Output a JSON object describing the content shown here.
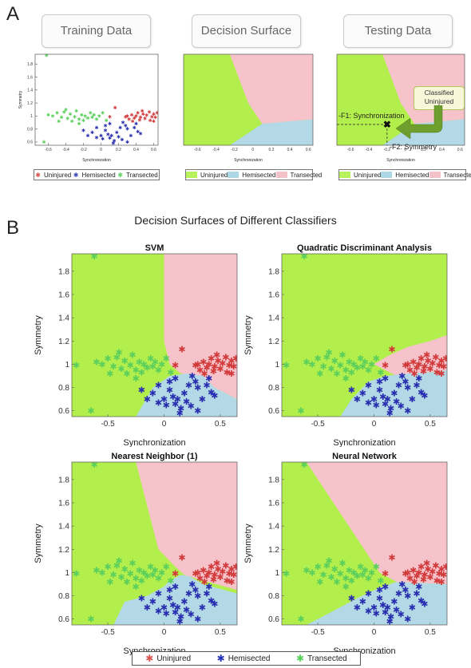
{
  "panel_a": {
    "letter": "A",
    "stages": [
      {
        "label": "Training Data"
      },
      {
        "label": "Decision Surface"
      },
      {
        "label": "Testing Data"
      }
    ],
    "callout": "Classified Uninjured",
    "annotation_f1": "-F1: Synchronization",
    "annotation_f2": "-F2: Symmetry",
    "legend": [
      {
        "label": "Uninjured",
        "color": "#d9534f",
        "marker": "*"
      },
      {
        "label": "Hemisected",
        "color": "#3a47b5",
        "marker": "*"
      },
      {
        "label": "Transected",
        "color": "#5fd15f",
        "marker": "*"
      }
    ],
    "surface_legend": [
      {
        "label": "Uninjured",
        "color": "#b7f25a"
      },
      {
        "label": "Hemisected",
        "color": "#add8e6"
      },
      {
        "label": "Transected",
        "color": "#f4c2c8"
      }
    ]
  },
  "panel_b": {
    "letter": "B",
    "title": "Decision Surfaces of Different Classifiers",
    "legend": [
      {
        "label": "Uninjured",
        "color": "#d9534f"
      },
      {
        "label": "Hemisected",
        "color": "#2431b5"
      },
      {
        "label": "Transected",
        "color": "#58d058"
      }
    ]
  },
  "colors": {
    "region_green": "#b3ef4c",
    "region_pink": "#f6c3cb",
    "region_blue": "#b2d9e5",
    "uninjured": "#d23b3b",
    "hemisected": "#2a2fb0",
    "transected": "#5ccf5c"
  },
  "chart_data": [
    {
      "type": "scatter",
      "id": "training",
      "title": "",
      "xlabel": "Synchronization",
      "ylabel": "Symmetry",
      "xlim": [
        -0.75,
        0.65
      ],
      "ylim": [
        0.55,
        1.95
      ],
      "xticks": [
        "-0.6",
        "-0.4",
        "-0.2",
        "0",
        "0.2",
        "0.4",
        "0.6"
      ],
      "yticks": [
        "0.6",
        "0.8",
        "1",
        "1.2",
        "1.4",
        "1.6",
        "1.8"
      ],
      "series": [
        {
          "name": "Uninjured",
          "points": [
            [
              0.1,
              0.99
            ],
            [
              0.16,
              1.13
            ],
            [
              0.28,
              0.99
            ],
            [
              0.3,
              1.0
            ],
            [
              0.32,
              0.95
            ],
            [
              0.35,
              1.02
            ],
            [
              0.38,
              0.97
            ],
            [
              0.4,
              1.0
            ],
            [
              0.42,
              1.05
            ],
            [
              0.45,
              0.98
            ],
            [
              0.48,
              1.03
            ],
            [
              0.5,
              0.96
            ],
            [
              0.52,
              1.01
            ],
            [
              0.55,
              1.06
            ],
            [
              0.58,
              0.99
            ],
            [
              0.6,
              1.03
            ],
            [
              0.62,
              0.98
            ],
            [
              0.64,
              1.05
            ],
            [
              0.36,
              0.92
            ],
            [
              0.44,
              0.94
            ],
            [
              0.56,
              0.93
            ],
            [
              0.6,
              0.92
            ],
            [
              0.47,
              1.08
            ]
          ]
        },
        {
          "name": "Hemisected",
          "points": [
            [
              -0.2,
              0.78
            ],
            [
              -0.1,
              0.75
            ],
            [
              -0.05,
              0.82
            ],
            [
              0.0,
              0.7
            ],
            [
              0.02,
              0.65
            ],
            [
              0.05,
              0.85
            ],
            [
              0.08,
              0.72
            ],
            [
              0.1,
              0.66
            ],
            [
              0.12,
              0.7
            ],
            [
              0.14,
              0.58
            ],
            [
              0.15,
              0.62
            ],
            [
              0.18,
              0.75
            ],
            [
              0.2,
              0.68
            ],
            [
              0.22,
              0.82
            ],
            [
              0.25,
              0.9
            ],
            [
              0.28,
              0.85
            ],
            [
              0.3,
              0.8
            ],
            [
              0.34,
              0.7
            ],
            [
              0.38,
              0.82
            ],
            [
              0.42,
              0.76
            ],
            [
              0.45,
              0.73
            ],
            [
              0.05,
              0.78
            ],
            [
              0.1,
              0.88
            ],
            [
              -0.15,
              0.7
            ],
            [
              0.24,
              0.64
            ],
            [
              0.3,
              0.6
            ],
            [
              0.4,
              0.88
            ],
            [
              -0.05,
              0.67
            ]
          ]
        },
        {
          "name": "Transected",
          "points": [
            [
              -0.62,
              1.93
            ],
            [
              -0.65,
              0.6
            ],
            [
              -0.78,
              0.99
            ],
            [
              -0.55,
              1.0
            ],
            [
              -0.5,
              1.05
            ],
            [
              -0.45,
              0.98
            ],
            [
              -0.42,
              1.06
            ],
            [
              -0.38,
              0.96
            ],
            [
              -0.35,
              1.03
            ],
            [
              -0.3,
              0.99
            ],
            [
              -0.28,
              1.08
            ],
            [
              -0.25,
              0.95
            ],
            [
              -0.22,
              1.02
            ],
            [
              -0.18,
              1.0
            ],
            [
              -0.15,
              0.97
            ],
            [
              -0.12,
              1.05
            ],
            [
              -0.1,
              0.98
            ],
            [
              -0.08,
              1.02
            ],
            [
              -0.05,
              0.95
            ],
            [
              -0.02,
              1.0
            ],
            [
              -0.48,
              0.92
            ],
            [
              -0.33,
              0.92
            ],
            [
              -0.2,
              0.93
            ],
            [
              0.02,
              1.05
            ],
            [
              -0.4,
              1.1
            ],
            [
              -0.6,
              1.02
            ],
            [
              0.06,
              0.93
            ],
            [
              -0.25,
              0.88
            ]
          ]
        }
      ]
    },
    {
      "type": "area",
      "id": "decision",
      "title": "",
      "xlabel": "Synchronization",
      "ylabel": "",
      "xlim": [
        -0.75,
        0.65
      ],
      "ylim": [
        0.55,
        1.95
      ]
    },
    {
      "type": "area",
      "id": "testing",
      "title": "",
      "xlabel": "Synchronization",
      "ylabel": "Symmetry",
      "xlim": [
        -0.75,
        0.65
      ],
      "ylim": [
        0.55,
        1.95
      ],
      "test_point": [
        -0.2,
        0.87
      ]
    },
    {
      "type": "scatter",
      "id": "svm",
      "title": "SVM",
      "xlabel": "Synchronization",
      "ylabel": "Symmetry",
      "xlim": [
        -0.82,
        0.65
      ],
      "ylim": [
        0.55,
        1.95
      ],
      "xticks": [
        "-0.5",
        "0",
        "0.5"
      ],
      "yticks": [
        "0.6",
        "0.8",
        "1",
        "1.2",
        "1.4",
        "1.6",
        "1.8"
      ]
    },
    {
      "type": "scatter",
      "id": "qda",
      "title": "Quadratic Discriminant Analysis",
      "xlabel": "Synchronization",
      "ylabel": "Symmetry",
      "xlim": [
        -0.82,
        0.65
      ],
      "ylim": [
        0.55,
        1.95
      ],
      "xticks": [
        "-0.5",
        "0",
        "0.5"
      ],
      "yticks": [
        "0.6",
        "0.8",
        "1",
        "1.2",
        "1.4",
        "1.6",
        "1.8"
      ]
    },
    {
      "type": "scatter",
      "id": "nn1",
      "title": "Nearest Neighbor (1)",
      "xlabel": "Synchronization",
      "ylabel": "Symmetry",
      "xlim": [
        -0.82,
        0.65
      ],
      "ylim": [
        0.55,
        1.95
      ],
      "xticks": [
        "-0.5",
        "0",
        "0.5"
      ],
      "yticks": [
        "0.6",
        "0.8",
        "1",
        "1.2",
        "1.4",
        "1.6",
        "1.8"
      ]
    },
    {
      "type": "scatter",
      "id": "neural",
      "title": "Neural Network",
      "xlabel": "Synchronization",
      "ylabel": "Symmetry",
      "xlim": [
        -0.82,
        0.65
      ],
      "ylim": [
        0.55,
        1.95
      ],
      "xticks": [
        "-0.5",
        "0",
        "0.5"
      ],
      "yticks": [
        "0.6",
        "0.8",
        "1",
        "1.2",
        "1.4",
        "1.6",
        "1.8"
      ]
    }
  ]
}
